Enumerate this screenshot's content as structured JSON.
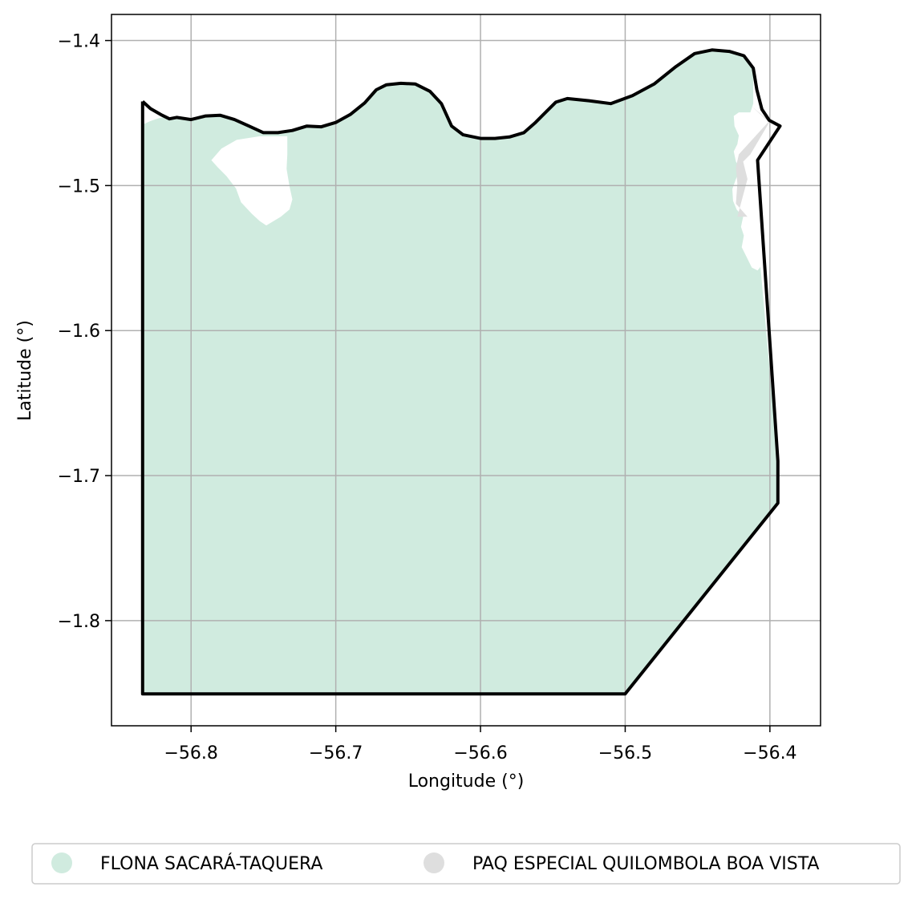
{
  "map": {
    "xlabel": "Longitude (°)",
    "ylabel": "Latitude (°)",
    "xlim": [
      -56.855,
      -56.365
    ],
    "ylim": [
      -1.8725,
      -1.382
    ],
    "grid": true,
    "legend_placement": "bottom-center",
    "x_ticks": [
      {
        "value": -56.8,
        "label": "−56.8"
      },
      {
        "value": -56.7,
        "label": "−56.7"
      },
      {
        "value": -56.6,
        "label": "−56.6"
      },
      {
        "value": -56.5,
        "label": "−56.5"
      },
      {
        "value": -56.4,
        "label": "−56.4"
      }
    ],
    "y_ticks": [
      {
        "value": -1.4,
        "label": "−1.4"
      },
      {
        "value": -1.5,
        "label": "−1.5"
      },
      {
        "value": -1.6,
        "label": "−1.6"
      },
      {
        "value": -1.7,
        "label": "−1.7"
      },
      {
        "value": -1.8,
        "label": "−1.8"
      }
    ],
    "legend": [
      {
        "label": "FLONA SACARÁ-TAQUERA",
        "color": "#d0ebdf"
      },
      {
        "label": "PAQ ESPECIAL QUILOMBOLA BOA VISTA",
        "color": "#dedede"
      }
    ],
    "colors": {
      "flona_fill": "#d0ebdf",
      "quilombola_fill": "#dedede",
      "boundary": "#000000",
      "grid": "#b0b0b0"
    },
    "regions": {
      "flona": [
        [
          -56.8335,
          -1.458
        ],
        [
          -56.828,
          -1.4555
        ],
        [
          -56.822,
          -1.4535
        ],
        [
          -56.817,
          -1.4525
        ],
        [
          -56.81,
          -1.4535
        ],
        [
          -56.8,
          -1.454
        ],
        [
          -56.79,
          -1.452
        ],
        [
          -56.78,
          -1.4515
        ],
        [
          -56.77,
          -1.454
        ],
        [
          -56.76,
          -1.459
        ],
        [
          -56.75,
          -1.4635
        ],
        [
          -56.74,
          -1.4635
        ],
        [
          -56.73,
          -1.462
        ],
        [
          -56.72,
          -1.459
        ],
        [
          -56.71,
          -1.4595
        ],
        [
          -56.7,
          -1.4565
        ],
        [
          -56.69,
          -1.451
        ],
        [
          -56.68,
          -1.443
        ],
        [
          -56.672,
          -1.434
        ],
        [
          -56.665,
          -1.4305
        ],
        [
          -56.655,
          -1.4295
        ],
        [
          -56.645,
          -1.43
        ],
        [
          -56.635,
          -1.435
        ],
        [
          -56.627,
          -1.4435
        ],
        [
          -56.62,
          -1.459
        ],
        [
          -56.612,
          -1.465
        ],
        [
          -56.6,
          -1.4675
        ],
        [
          -56.59,
          -1.4675
        ],
        [
          -56.58,
          -1.4665
        ],
        [
          -56.57,
          -1.4635
        ],
        [
          -56.562,
          -1.4565
        ],
        [
          -56.555,
          -1.4495
        ],
        [
          -56.548,
          -1.4425
        ],
        [
          -56.54,
          -1.44
        ],
        [
          -56.525,
          -1.4415
        ],
        [
          -56.51,
          -1.4435
        ],
        [
          -56.495,
          -1.438
        ],
        [
          -56.48,
          -1.43
        ],
        [
          -56.465,
          -1.418
        ],
        [
          -56.452,
          -1.409
        ],
        [
          -56.44,
          -1.4065
        ],
        [
          -56.428,
          -1.4075
        ],
        [
          -56.418,
          -1.4105
        ],
        [
          -56.4115,
          -1.419
        ],
        [
          -56.4115,
          -1.4435
        ],
        [
          -56.4135,
          -1.4495
        ],
        [
          -56.4215,
          -1.4495
        ],
        [
          -56.425,
          -1.452
        ],
        [
          -56.4245,
          -1.459
        ],
        [
          -56.4215,
          -1.4655
        ],
        [
          -56.4225,
          -1.4715
        ],
        [
          -56.425,
          -1.4765
        ],
        [
          -56.4235,
          -1.4835
        ],
        [
          -56.4205,
          -1.4885
        ],
        [
          -56.4235,
          -1.4955
        ],
        [
          -56.426,
          -1.5025
        ],
        [
          -56.4255,
          -1.5105
        ],
        [
          -56.423,
          -1.5165
        ],
        [
          -56.4185,
          -1.5215
        ],
        [
          -56.42,
          -1.5285
        ],
        [
          -56.418,
          -1.5345
        ],
        [
          -56.4195,
          -1.5425
        ],
        [
          -56.416,
          -1.5495
        ],
        [
          -56.4125,
          -1.5565
        ],
        [
          -56.4085,
          -1.5585
        ],
        [
          -56.4065,
          -1.556
        ],
        [
          -56.3945,
          -1.69
        ],
        [
          -56.3945,
          -1.719
        ],
        [
          -56.5,
          -1.8505
        ],
        [
          -56.8335,
          -1.8505
        ]
      ],
      "hole": [
        [
          -56.7335,
          -1.466
        ],
        [
          -56.7335,
          -1.4785
        ],
        [
          -56.734,
          -1.4885
        ],
        [
          -56.732,
          -1.5005
        ],
        [
          -56.73,
          -1.5095
        ],
        [
          -56.732,
          -1.5165
        ],
        [
          -56.738,
          -1.5215
        ],
        [
          -56.748,
          -1.5275
        ],
        [
          -56.7525,
          -1.5245
        ],
        [
          -56.758,
          -1.5195
        ],
        [
          -56.7655,
          -1.5115
        ],
        [
          -56.769,
          -1.502
        ],
        [
          -56.7755,
          -1.4935
        ],
        [
          -56.7815,
          -1.4875
        ],
        [
          -56.786,
          -1.4825
        ],
        [
          -56.779,
          -1.4745
        ],
        [
          -56.7685,
          -1.4685
        ],
        [
          -56.7525,
          -1.466
        ]
      ],
      "quilombola": [
        [
          -56.4125,
          -1.4455
        ],
        [
          -56.4005,
          -1.4555
        ],
        [
          -56.4215,
          -1.4785
        ],
        [
          -56.4235,
          -1.4875
        ],
        [
          -56.4225,
          -1.4985
        ],
        [
          -56.4235,
          -1.5125
        ],
        [
          -56.4155,
          -1.5215
        ],
        [
          -56.4225,
          -1.5215
        ],
        [
          -56.4155,
          -1.4955
        ],
        [
          -56.4185,
          -1.4835
        ],
        [
          -56.4135,
          -1.4785
        ],
        [
          -56.4005,
          -1.4565
        ]
      ],
      "boundary": [
        [
          -56.8335,
          -1.442
        ],
        [
          -56.828,
          -1.447
        ],
        [
          -56.82,
          -1.4515
        ],
        [
          -56.815,
          -1.454
        ],
        [
          -56.81,
          -1.453
        ],
        [
          -56.8,
          -1.4545
        ],
        [
          -56.79,
          -1.452
        ],
        [
          -56.78,
          -1.4515
        ],
        [
          -56.77,
          -1.4545
        ],
        [
          -56.76,
          -1.459
        ],
        [
          -56.75,
          -1.4635
        ],
        [
          -56.74,
          -1.4635
        ],
        [
          -56.73,
          -1.462
        ],
        [
          -56.72,
          -1.459
        ],
        [
          -56.71,
          -1.4595
        ],
        [
          -56.7,
          -1.4565
        ],
        [
          -56.69,
          -1.451
        ],
        [
          -56.68,
          -1.443
        ],
        [
          -56.672,
          -1.434
        ],
        [
          -56.665,
          -1.4305
        ],
        [
          -56.655,
          -1.4295
        ],
        [
          -56.645,
          -1.43
        ],
        [
          -56.635,
          -1.435
        ],
        [
          -56.627,
          -1.4435
        ],
        [
          -56.62,
          -1.459
        ],
        [
          -56.612,
          -1.465
        ],
        [
          -56.6,
          -1.4675
        ],
        [
          -56.59,
          -1.4675
        ],
        [
          -56.58,
          -1.4665
        ],
        [
          -56.57,
          -1.4635
        ],
        [
          -56.562,
          -1.4565
        ],
        [
          -56.555,
          -1.4495
        ],
        [
          -56.548,
          -1.4425
        ],
        [
          -56.54,
          -1.44
        ],
        [
          -56.525,
          -1.4415
        ],
        [
          -56.51,
          -1.4435
        ],
        [
          -56.495,
          -1.438
        ],
        [
          -56.48,
          -1.43
        ],
        [
          -56.465,
          -1.418
        ],
        [
          -56.452,
          -1.409
        ],
        [
          -56.44,
          -1.4065
        ],
        [
          -56.428,
          -1.4075
        ],
        [
          -56.418,
          -1.4105
        ],
        [
          -56.4115,
          -1.419
        ],
        [
          -56.409,
          -1.434
        ],
        [
          -56.4055,
          -1.4475
        ],
        [
          -56.4005,
          -1.455
        ],
        [
          -56.393,
          -1.459
        ],
        [
          -56.4085,
          -1.4825
        ],
        [
          -56.3945,
          -1.69
        ],
        [
          -56.3945,
          -1.719
        ],
        [
          -56.5,
          -1.8505
        ],
        [
          -56.8335,
          -1.8505
        ],
        [
          -56.8335,
          -1.442
        ]
      ]
    }
  }
}
